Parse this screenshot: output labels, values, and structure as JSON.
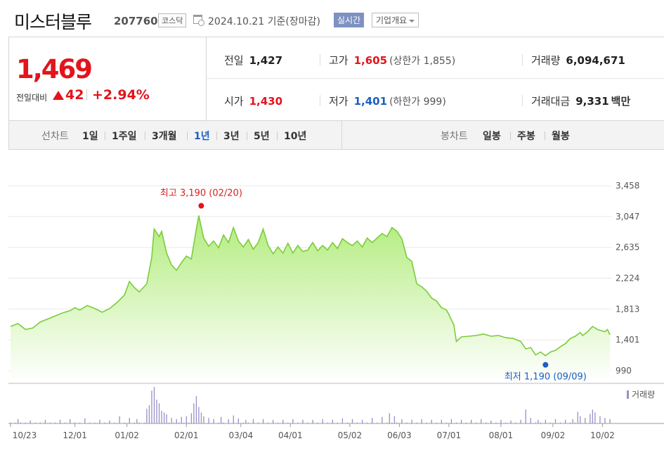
{
  "header": {
    "name": "미스터블루",
    "code": "207760",
    "market": "코스닥",
    "date": "2024.10.21  기준(장마감)",
    "realtime": "실시간",
    "company_info": "기업개요"
  },
  "price": {
    "current": "1,469",
    "change_label": "전일대비",
    "change": "42",
    "change_pct": "+2.94%"
  },
  "stats": {
    "prev_close": {
      "label": "전일",
      "value": "1,427"
    },
    "open": {
      "label": "시가",
      "value": "1,430"
    },
    "high": {
      "label": "고가",
      "value": "1,605",
      "sub": "(상한가 1,855)"
    },
    "low": {
      "label": "저가",
      "value": "1,401",
      "sub": "(하한가 999)"
    },
    "volume": {
      "label": "거래량",
      "value": "6,094,671"
    },
    "amount": {
      "label": "거래대금",
      "value": "9,331",
      "unit": "백만"
    }
  },
  "tabs": {
    "line_label": "선차트",
    "line_tabs": [
      "1일",
      "1주일",
      "3개월",
      "1년",
      "3년",
      "5년",
      "10년"
    ],
    "active": "1년",
    "candle_label": "봉차트",
    "candle_tabs": [
      "일봉",
      "주봉",
      "월봉"
    ]
  },
  "colors": {
    "up": "#e3141b",
    "down": "#1b5ec4",
    "line": "#7bcc3a",
    "fill": "#bdf08f",
    "volume": "#9a8fc9"
  },
  "chart_data": {
    "type": "area",
    "y_ticks": [
      990,
      1401,
      1813,
      2224,
      2635,
      3047,
      3458
    ],
    "ylim": [
      990,
      3458
    ],
    "x_tick_labels": [
      "10/23",
      "12/01",
      "01/02",
      "02/01",
      "03/04",
      "04/01",
      "05/02",
      "06/03",
      "07/01",
      "08/01",
      "09/02",
      "10/02"
    ],
    "x_tick_index": [
      0,
      26,
      47,
      71,
      93,
      113,
      137,
      157,
      177,
      198,
      219,
      239
    ],
    "price_anchors": [
      [
        0,
        1580
      ],
      [
        3,
        1620
      ],
      [
        6,
        1540
      ],
      [
        9,
        1560
      ],
      [
        12,
        1640
      ],
      [
        15,
        1680
      ],
      [
        18,
        1720
      ],
      [
        21,
        1760
      ],
      [
        24,
        1790
      ],
      [
        26,
        1830
      ],
      [
        28,
        1800
      ],
      [
        31,
        1860
      ],
      [
        34,
        1820
      ],
      [
        37,
        1770
      ],
      [
        40,
        1820
      ],
      [
        43,
        1900
      ],
      [
        46,
        2000
      ],
      [
        48,
        2180
      ],
      [
        50,
        2100
      ],
      [
        52,
        2040
      ],
      [
        55,
        2150
      ],
      [
        57,
        2500
      ],
      [
        58,
        2880
      ],
      [
        60,
        2780
      ],
      [
        61,
        2850
      ],
      [
        63,
        2560
      ],
      [
        65,
        2400
      ],
      [
        67,
        2330
      ],
      [
        69,
        2430
      ],
      [
        71,
        2520
      ],
      [
        73,
        2480
      ],
      [
        75,
        2880
      ],
      [
        76,
        3060
      ],
      [
        78,
        2760
      ],
      [
        80,
        2650
      ],
      [
        82,
        2720
      ],
      [
        84,
        2630
      ],
      [
        86,
        2800
      ],
      [
        88,
        2700
      ],
      [
        90,
        2900
      ],
      [
        92,
        2720
      ],
      [
        94,
        2640
      ],
      [
        96,
        2740
      ],
      [
        98,
        2610
      ],
      [
        100,
        2700
      ],
      [
        102,
        2880
      ],
      [
        104,
        2660
      ],
      [
        106,
        2550
      ],
      [
        108,
        2640
      ],
      [
        110,
        2560
      ],
      [
        112,
        2690
      ],
      [
        114,
        2560
      ],
      [
        116,
        2660
      ],
      [
        118,
        2580
      ],
      [
        120,
        2600
      ],
      [
        122,
        2700
      ],
      [
        124,
        2590
      ],
      [
        126,
        2660
      ],
      [
        128,
        2600
      ],
      [
        130,
        2700
      ],
      [
        132,
        2620
      ],
      [
        134,
        2750
      ],
      [
        136,
        2700
      ],
      [
        138,
        2660
      ],
      [
        140,
        2720
      ],
      [
        142,
        2640
      ],
      [
        144,
        2760
      ],
      [
        146,
        2700
      ],
      [
        148,
        2760
      ],
      [
        150,
        2820
      ],
      [
        152,
        2780
      ],
      [
        154,
        2900
      ],
      [
        156,
        2850
      ],
      [
        158,
        2750
      ],
      [
        160,
        2500
      ],
      [
        162,
        2450
      ],
      [
        164,
        2150
      ],
      [
        166,
        2110
      ],
      [
        168,
        2050
      ],
      [
        170,
        1960
      ],
      [
        172,
        1920
      ],
      [
        174,
        1830
      ],
      [
        176,
        1800
      ],
      [
        177,
        1740
      ],
      [
        179,
        1600
      ],
      [
        180,
        1380
      ],
      [
        182,
        1440
      ],
      [
        185,
        1450
      ],
      [
        188,
        1460
      ],
      [
        191,
        1480
      ],
      [
        194,
        1450
      ],
      [
        197,
        1460
      ],
      [
        200,
        1430
      ],
      [
        203,
        1420
      ],
      [
        206,
        1380
      ],
      [
        208,
        1280
      ],
      [
        210,
        1300
      ],
      [
        212,
        1200
      ],
      [
        214,
        1240
      ],
      [
        216,
        1190
      ],
      [
        218,
        1240
      ],
      [
        220,
        1260
      ],
      [
        222,
        1310
      ],
      [
        224,
        1350
      ],
      [
        226,
        1420
      ],
      [
        228,
        1450
      ],
      [
        230,
        1500
      ],
      [
        231,
        1460
      ],
      [
        233,
        1510
      ],
      [
        235,
        1580
      ],
      [
        237,
        1540
      ],
      [
        239,
        1520
      ],
      [
        240,
        1510
      ],
      [
        241,
        1540
      ],
      [
        242,
        1469
      ]
    ],
    "high": {
      "value": 3190,
      "date": "02/20",
      "label": "최고 3,190 (02/20)"
    },
    "low": {
      "value": 1190,
      "date": "09/09",
      "label": "최저 1,190 (09/09)"
    },
    "volume_label": "거래량",
    "volume_spikes": [
      [
        3,
        0.12
      ],
      [
        8,
        0.08
      ],
      [
        14,
        0.1
      ],
      [
        20,
        0.1
      ],
      [
        24,
        0.12
      ],
      [
        30,
        0.14
      ],
      [
        36,
        0.1
      ],
      [
        40,
        0.08
      ],
      [
        44,
        0.2
      ],
      [
        48,
        0.15
      ],
      [
        51,
        0.12
      ],
      [
        55,
        0.4
      ],
      [
        56,
        0.5
      ],
      [
        57,
        0.9
      ],
      [
        58,
        1.0
      ],
      [
        59,
        0.65
      ],
      [
        60,
        0.55
      ],
      [
        61,
        0.35
      ],
      [
        62,
        0.3
      ],
      [
        63,
        0.25
      ],
      [
        65,
        0.15
      ],
      [
        67,
        0.12
      ],
      [
        69,
        0.18
      ],
      [
        71,
        0.2
      ],
      [
        73,
        0.28
      ],
      [
        74,
        0.55
      ],
      [
        75,
        0.75
      ],
      [
        76,
        0.45
      ],
      [
        77,
        0.3
      ],
      [
        78,
        0.2
      ],
      [
        80,
        0.15
      ],
      [
        82,
        0.12
      ],
      [
        85,
        0.18
      ],
      [
        88,
        0.12
      ],
      [
        90,
        0.22
      ],
      [
        92,
        0.14
      ],
      [
        95,
        0.1
      ],
      [
        98,
        0.12
      ],
      [
        102,
        0.12
      ],
      [
        106,
        0.1
      ],
      [
        110,
        0.1
      ],
      [
        114,
        0.12
      ],
      [
        118,
        0.1
      ],
      [
        122,
        0.1
      ],
      [
        126,
        0.12
      ],
      [
        130,
        0.1
      ],
      [
        134,
        0.14
      ],
      [
        138,
        0.12
      ],
      [
        142,
        0.1
      ],
      [
        146,
        0.15
      ],
      [
        150,
        0.18
      ],
      [
        153,
        0.28
      ],
      [
        155,
        0.2
      ],
      [
        158,
        0.12
      ],
      [
        162,
        0.1
      ],
      [
        166,
        0.12
      ],
      [
        170,
        0.1
      ],
      [
        174,
        0.1
      ],
      [
        178,
        0.12
      ],
      [
        182,
        0.1
      ],
      [
        186,
        0.1
      ],
      [
        190,
        0.12
      ],
      [
        194,
        0.08
      ],
      [
        198,
        0.1
      ],
      [
        202,
        0.08
      ],
      [
        206,
        0.1
      ],
      [
        208,
        0.38
      ],
      [
        210,
        0.15
      ],
      [
        213,
        0.1
      ],
      [
        216,
        0.1
      ],
      [
        220,
        0.12
      ],
      [
        224,
        0.1
      ],
      [
        227,
        0.12
      ],
      [
        229,
        0.32
      ],
      [
        230,
        0.2
      ],
      [
        232,
        0.15
      ],
      [
        234,
        0.26
      ],
      [
        235,
        0.38
      ],
      [
        236,
        0.3
      ],
      [
        238,
        0.2
      ],
      [
        240,
        0.15
      ],
      [
        242,
        0.12
      ]
    ]
  }
}
